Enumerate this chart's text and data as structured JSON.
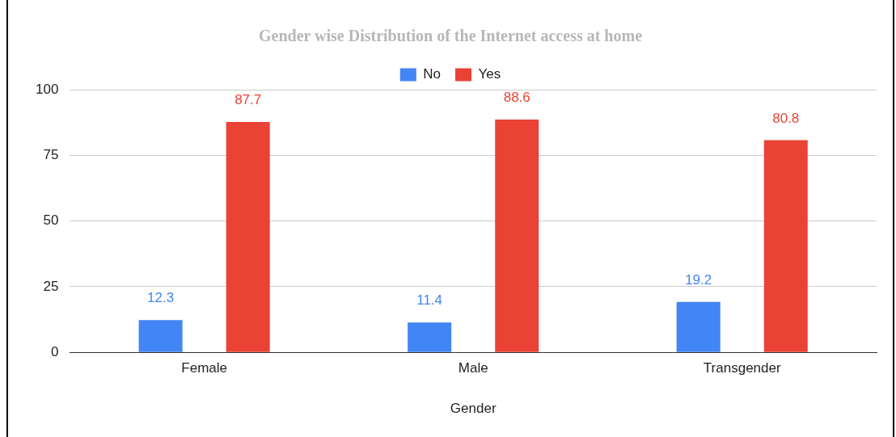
{
  "chart_data": {
    "type": "bar",
    "title": "Gender wise Distribution of the Internet access at home",
    "xlabel": "Gender",
    "categories": [
      "Female",
      "Male",
      "Transgender"
    ],
    "series": [
      {
        "name": "No",
        "color": "#4285f4",
        "values": [
          12.3,
          11.4,
          19.2
        ]
      },
      {
        "name": "Yes",
        "color": "#ea4335",
        "values": [
          87.7,
          88.6,
          80.8
        ]
      }
    ],
    "ylim": [
      0,
      100
    ],
    "yticks": [
      0,
      25,
      50,
      75,
      100
    ],
    "grid": "y",
    "legend": "top",
    "data_labels": true
  }
}
